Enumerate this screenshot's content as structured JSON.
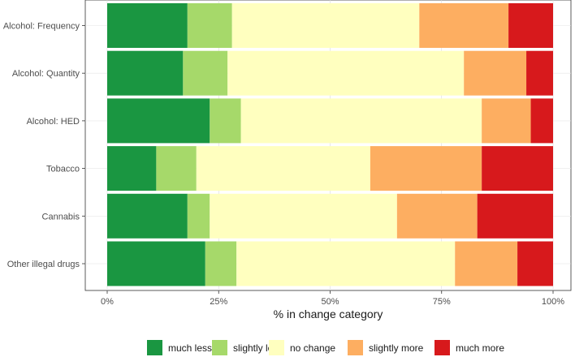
{
  "chart_data": {
    "type": "bar",
    "orientation": "horizontal",
    "stacked": true,
    "percent": true,
    "title": "",
    "xlabel": "% in change category",
    "ylabel": "",
    "xlim": [
      0,
      100
    ],
    "x_ticks": [
      0,
      25,
      50,
      75,
      100
    ],
    "x_tick_labels": [
      "0%",
      "25%",
      "50%",
      "75%",
      "100%"
    ],
    "grid": true,
    "legend_position": "bottom",
    "categories": [
      "Alcohol: Frequency",
      "Alcohol: Quantity",
      "Alcohol: HED",
      "Tobacco",
      "Cannabis",
      "Other illegal drugs"
    ],
    "series": [
      {
        "name": "much less",
        "color": "#1a9641",
        "values": [
          18,
          17,
          23,
          11,
          18,
          22
        ]
      },
      {
        "name": "slightly less",
        "color": "#a6d96a",
        "values": [
          10,
          10,
          7,
          9,
          5,
          7
        ]
      },
      {
        "name": "no change",
        "color": "#ffffbf",
        "values": [
          42,
          53,
          54,
          39,
          42,
          49
        ]
      },
      {
        "name": "slightly more",
        "color": "#fdae61",
        "values": [
          20,
          14,
          11,
          25,
          18,
          14
        ]
      },
      {
        "name": "much more",
        "color": "#d7191c",
        "values": [
          10,
          6,
          5,
          16,
          17,
          8
        ]
      }
    ]
  }
}
